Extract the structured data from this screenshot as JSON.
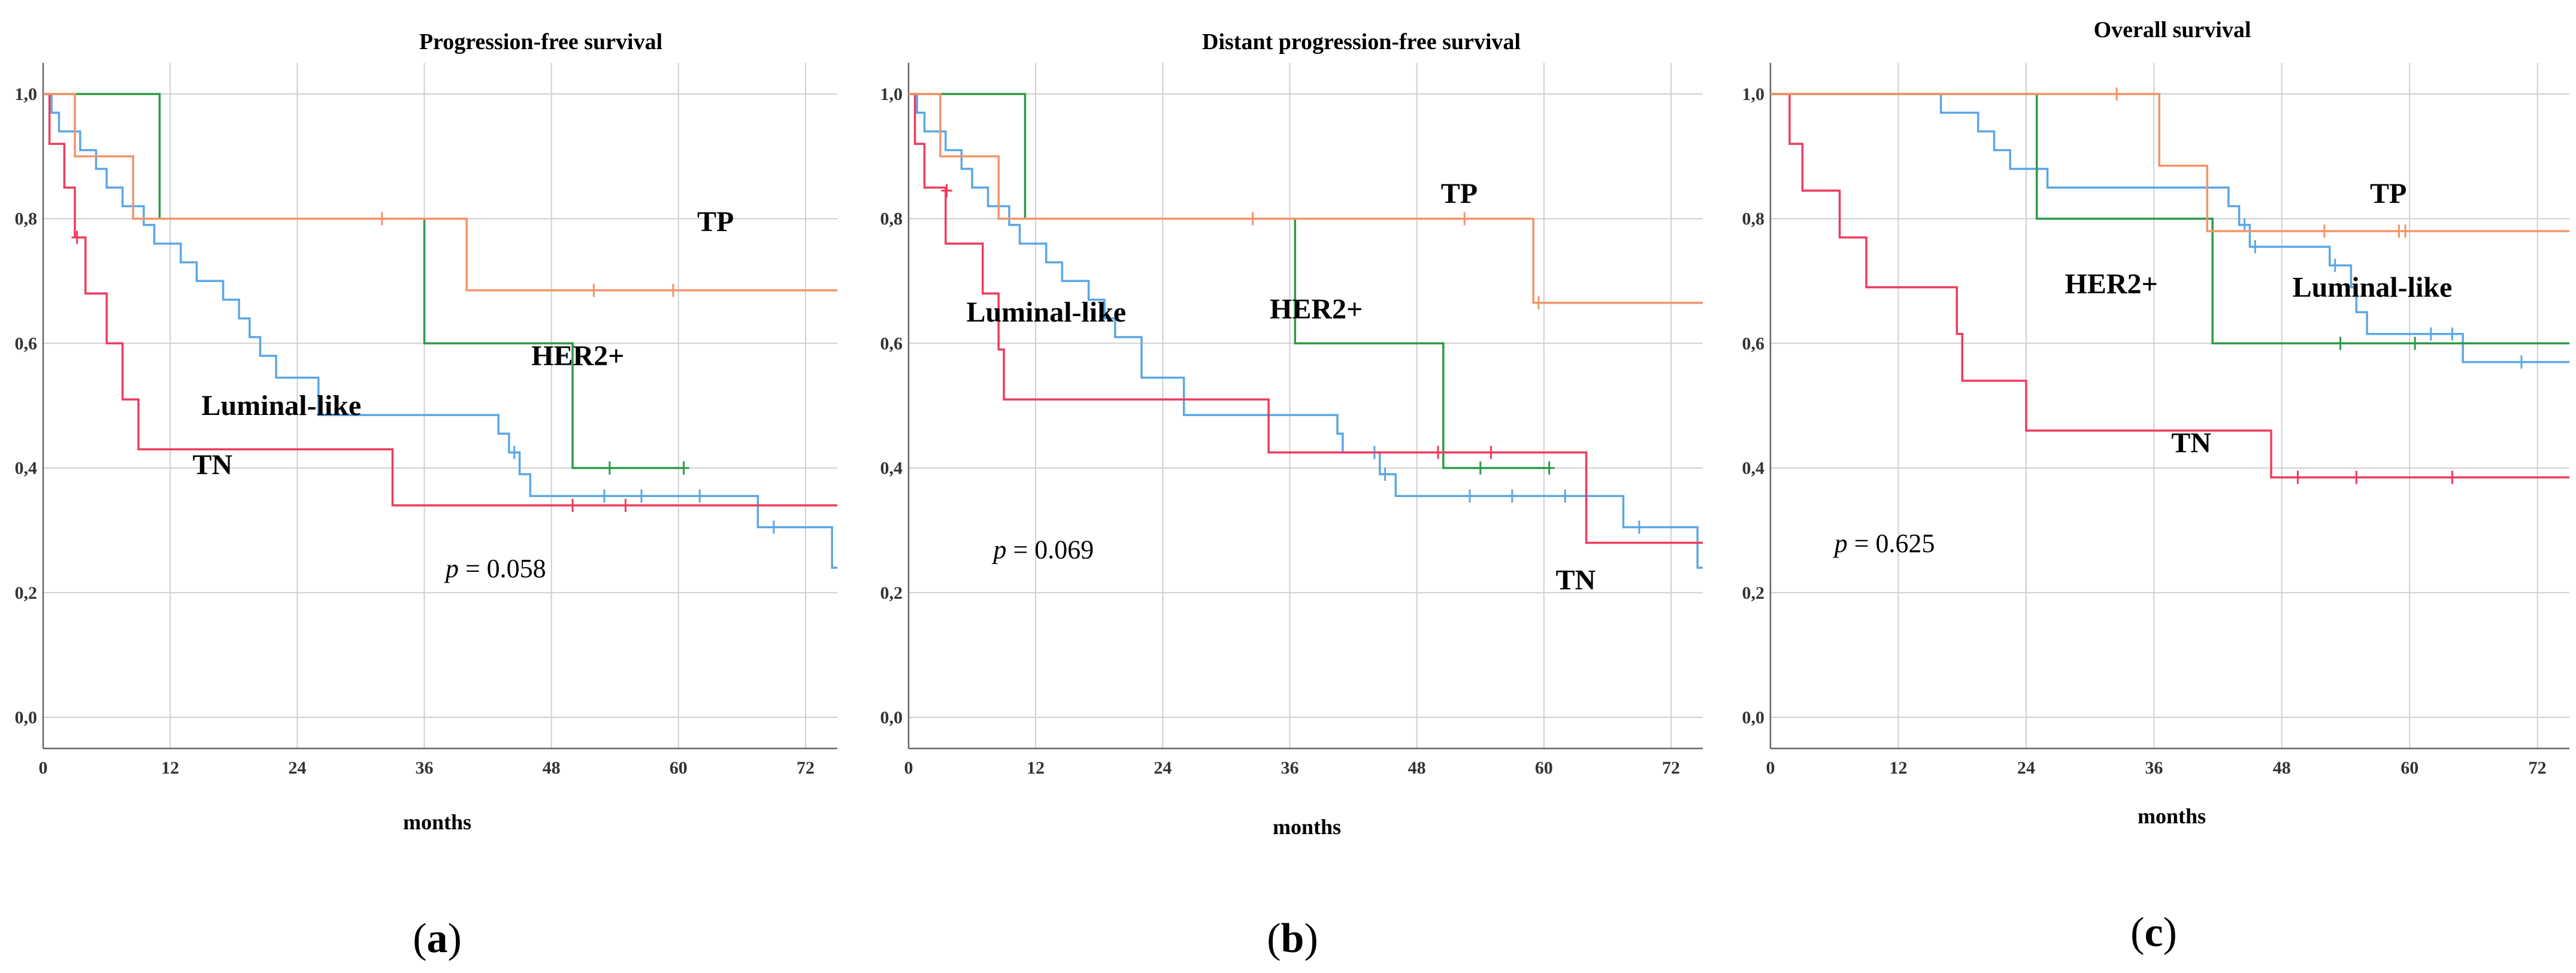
{
  "colors": {
    "Luminal-like": "#5aa7e6",
    "HER2+": "#2e9a48",
    "TN": "#ee3b5d",
    "TP": "#f4946a",
    "grid": "#cfcfcf",
    "axis": "#666666"
  },
  "chart_data": [
    {
      "type": "line",
      "title": "Progression-free survival",
      "xlabel": "months",
      "ylabel": "",
      "panel_label": "a",
      "xlim": [
        0,
        75
      ],
      "ylim": [
        -0.05,
        1.05
      ],
      "xticks": [
        0,
        12,
        24,
        36,
        48,
        60,
        72
      ],
      "xtick_labels": [
        "0",
        "12",
        "24",
        "36",
        "48",
        "60",
        "72"
      ],
      "yticks": [
        0,
        0.2,
        0.4,
        0.6,
        0.8,
        1.0
      ],
      "ytick_labels": [
        "0,0",
        "0,2",
        "0,4",
        "0,6",
        "0,8",
        "1,0"
      ],
      "grid": true,
      "p_value": {
        "prefix": "p",
        "text": " = 0.058",
        "x": 38,
        "y": 0.225
      },
      "annotations": [
        {
          "text": "TP",
          "x": 63.5,
          "y": 0.78
        },
        {
          "text": "HER2+",
          "x": 50.5,
          "y": 0.565
        },
        {
          "text": "Luminal-like",
          "x": 22.5,
          "y": 0.485
        },
        {
          "text": "TN",
          "x": 16,
          "y": 0.39
        }
      ],
      "series": [
        {
          "name": "Luminal-like",
          "steps": [
            [
              0,
              1.0
            ],
            [
              0.8,
              0.97
            ],
            [
              1.5,
              0.94
            ],
            [
              3.5,
              0.91
            ],
            [
              5,
              0.88
            ],
            [
              6,
              0.85
            ],
            [
              7.5,
              0.82
            ],
            [
              9.5,
              0.79
            ],
            [
              10.5,
              0.76
            ],
            [
              13,
              0.73
            ],
            [
              14.5,
              0.7
            ],
            [
              17,
              0.67
            ],
            [
              18.5,
              0.64
            ],
            [
              19.5,
              0.61
            ],
            [
              20.5,
              0.58
            ],
            [
              22,
              0.545
            ],
            [
              26,
              0.485
            ],
            [
              43,
              0.455
            ],
            [
              44,
              0.425
            ],
            [
              45,
              0.39
            ],
            [
              46,
              0.355
            ],
            [
              67.5,
              0.305
            ],
            [
              74.5,
              0.24
            ],
            [
              75,
              0.24
            ]
          ],
          "censors": [
            [
              44.5,
              0.425
            ],
            [
              53,
              0.355
            ],
            [
              56.5,
              0.355
            ],
            [
              62,
              0.355
            ],
            [
              69,
              0.305
            ]
          ]
        },
        {
          "name": "HER2+",
          "steps": [
            [
              0,
              1.0
            ],
            [
              11,
              0.8
            ],
            [
              36,
              0.6
            ],
            [
              50,
              0.4
            ],
            [
              60.5,
              0.4
            ]
          ],
          "censors": [
            [
              53.5,
              0.4
            ],
            [
              60.5,
              0.4
            ]
          ]
        },
        {
          "name": "TN",
          "steps": [
            [
              0,
              1.0
            ],
            [
              0.6,
              0.92
            ],
            [
              2,
              0.85
            ],
            [
              3,
              0.77
            ],
            [
              4,
              0.68
            ],
            [
              6,
              0.6
            ],
            [
              7.5,
              0.51
            ],
            [
              9,
              0.43
            ],
            [
              33,
              0.34
            ],
            [
              75,
              0.34
            ]
          ],
          "censors": [
            [
              3.2,
              0.77
            ],
            [
              50,
              0.34
            ],
            [
              55,
              0.34
            ]
          ]
        },
        {
          "name": "TP",
          "steps": [
            [
              0,
              1.0
            ],
            [
              3,
              0.9
            ],
            [
              8.5,
              0.8
            ],
            [
              40,
              0.685
            ],
            [
              75,
              0.685
            ]
          ],
          "censors": [
            [
              32,
              0.8
            ],
            [
              52,
              0.685
            ],
            [
              59.5,
              0.685
            ]
          ]
        }
      ]
    },
    {
      "type": "line",
      "title": "Distant progression-free survival",
      "xlabel": "months",
      "ylabel": "",
      "panel_label": "b",
      "xlim": [
        0,
        75
      ],
      "ylim": [
        -0.05,
        1.05
      ],
      "xticks": [
        0,
        12,
        24,
        36,
        48,
        60,
        72
      ],
      "xtick_labels": [
        "0",
        "12",
        "24",
        "36",
        "48",
        "60",
        "72"
      ],
      "yticks": [
        0,
        0.2,
        0.4,
        0.6,
        0.8,
        1.0
      ],
      "ytick_labels": [
        "0,0",
        "0,2",
        "0,4",
        "0,6",
        "0,8",
        "1,0"
      ],
      "grid": true,
      "p_value": {
        "prefix": "p",
        "text": " = 0.069",
        "x": 8,
        "y": 0.255
      },
      "annotations": [
        {
          "text": "TP",
          "x": 52,
          "y": 0.825
        },
        {
          "text": "Luminal-like",
          "x": 13,
          "y": 0.635
        },
        {
          "text": "HER2+",
          "x": 38.5,
          "y": 0.64
        },
        {
          "text": "TN",
          "x": 63,
          "y": 0.205
        }
      ],
      "series": [
        {
          "name": "Luminal-like",
          "steps": [
            [
              0,
              1.0
            ],
            [
              0.8,
              0.97
            ],
            [
              1.5,
              0.94
            ],
            [
              3.5,
              0.91
            ],
            [
              5,
              0.88
            ],
            [
              6,
              0.85
            ],
            [
              7.5,
              0.82
            ],
            [
              9.5,
              0.79
            ],
            [
              10.5,
              0.76
            ],
            [
              13,
              0.73
            ],
            [
              14.5,
              0.7
            ],
            [
              17,
              0.67
            ],
            [
              18.5,
              0.64
            ],
            [
              19.5,
              0.61
            ],
            [
              22,
              0.545
            ],
            [
              26,
              0.485
            ],
            [
              40.5,
              0.455
            ],
            [
              41,
              0.425
            ],
            [
              44.5,
              0.39
            ],
            [
              46,
              0.355
            ],
            [
              67.5,
              0.305
            ],
            [
              74.5,
              0.24
            ],
            [
              75,
              0.24
            ]
          ],
          "censors": [
            [
              44,
              0.425
            ],
            [
              45,
              0.39
            ],
            [
              53,
              0.355
            ],
            [
              57,
              0.355
            ],
            [
              62,
              0.355
            ],
            [
              69,
              0.305
            ]
          ]
        },
        {
          "name": "HER2+",
          "steps": [
            [
              0,
              1.0
            ],
            [
              11,
              0.8
            ],
            [
              36.5,
              0.6
            ],
            [
              50.5,
              0.4
            ],
            [
              60.5,
              0.4
            ]
          ],
          "censors": [
            [
              54,
              0.4
            ],
            [
              60.5,
              0.4
            ]
          ]
        },
        {
          "name": "TN",
          "steps": [
            [
              0,
              1.0
            ],
            [
              0.6,
              0.92
            ],
            [
              1.5,
              0.85
            ],
            [
              3.5,
              0.76
            ],
            [
              7,
              0.68
            ],
            [
              8.5,
              0.59
            ],
            [
              9,
              0.51
            ],
            [
              34,
              0.425
            ],
            [
              64,
              0.28
            ],
            [
              75,
              0.28
            ]
          ],
          "censors": [
            [
              3.6,
              0.845
            ],
            [
              50,
              0.425
            ],
            [
              55,
              0.425
            ]
          ]
        },
        {
          "name": "TP",
          "steps": [
            [
              0,
              1.0
            ],
            [
              3,
              0.9
            ],
            [
              8.5,
              0.8
            ],
            [
              59,
              0.665
            ],
            [
              75,
              0.665
            ]
          ],
          "censors": [
            [
              32.5,
              0.8
            ],
            [
              52.5,
              0.8
            ],
            [
              59.5,
              0.665
            ]
          ]
        }
      ]
    },
    {
      "type": "line",
      "title": "Overall survival",
      "xlabel": "months",
      "ylabel": "",
      "panel_label": "c",
      "xlim": [
        0,
        75
      ],
      "ylim": [
        -0.05,
        1.05
      ],
      "xticks": [
        0,
        12,
        24,
        36,
        48,
        60,
        72
      ],
      "xtick_labels": [
        "0",
        "12",
        "24",
        "36",
        "48",
        "60",
        "72"
      ],
      "yticks": [
        0,
        0.2,
        0.4,
        0.6,
        0.8,
        1.0
      ],
      "ytick_labels": [
        "0,0",
        "0,2",
        "0,4",
        "0,6",
        "0,8",
        "1,0"
      ],
      "grid": true,
      "p_value": {
        "prefix": "p",
        "text": " = 0.625",
        "x": 6,
        "y": 0.265
      },
      "annotations": [
        {
          "text": "TP",
          "x": 58,
          "y": 0.825
        },
        {
          "text": "HER2+",
          "x": 32,
          "y": 0.68
        },
        {
          "text": "Luminal-like",
          "x": 56.5,
          "y": 0.675
        },
        {
          "text": "TN",
          "x": 39.5,
          "y": 0.425
        }
      ],
      "series": [
        {
          "name": "Luminal-like",
          "steps": [
            [
              0,
              1.0
            ],
            [
              16,
              0.97
            ],
            [
              19.5,
              0.94
            ],
            [
              21,
              0.91
            ],
            [
              22.5,
              0.88
            ],
            [
              26,
              0.85
            ],
            [
              43,
              0.82
            ],
            [
              44,
              0.79
            ],
            [
              45,
              0.755
            ],
            [
              52.5,
              0.725
            ],
            [
              54.5,
              0.69
            ],
            [
              55,
              0.65
            ],
            [
              56,
              0.615
            ],
            [
              65,
              0.57
            ],
            [
              75,
              0.57
            ]
          ],
          "censors": [
            [
              44.5,
              0.79
            ],
            [
              45.5,
              0.755
            ],
            [
              53,
              0.725
            ],
            [
              62,
              0.615
            ],
            [
              64,
              0.615
            ],
            [
              70.5,
              0.57
            ]
          ]
        },
        {
          "name": "HER2+",
          "steps": [
            [
              0,
              1.0
            ],
            [
              25,
              0.8
            ],
            [
              41.5,
              0.6
            ],
            [
              75,
              0.6
            ]
          ],
          "censors": [
            [
              53.5,
              0.6
            ],
            [
              60.5,
              0.6
            ]
          ]
        },
        {
          "name": "TN",
          "steps": [
            [
              0,
              1.0
            ],
            [
              1.8,
              0.92
            ],
            [
              3,
              0.845
            ],
            [
              6.5,
              0.77
            ],
            [
              9,
              0.69
            ],
            [
              17.5,
              0.615
            ],
            [
              18,
              0.54
            ],
            [
              24,
              0.46
            ],
            [
              47,
              0.385
            ],
            [
              75,
              0.385
            ]
          ],
          "censors": [
            [
              49.5,
              0.385
            ],
            [
              55,
              0.385
            ],
            [
              64,
              0.385
            ]
          ]
        },
        {
          "name": "TP",
          "steps": [
            [
              0,
              1.0
            ],
            [
              36.5,
              0.885
            ],
            [
              41,
              0.78
            ],
            [
              75,
              0.78
            ]
          ],
          "censors": [
            [
              32.5,
              1.0
            ],
            [
              52,
              0.78
            ],
            [
              59,
              0.78
            ],
            [
              59.6,
              0.78
            ]
          ]
        }
      ]
    }
  ]
}
